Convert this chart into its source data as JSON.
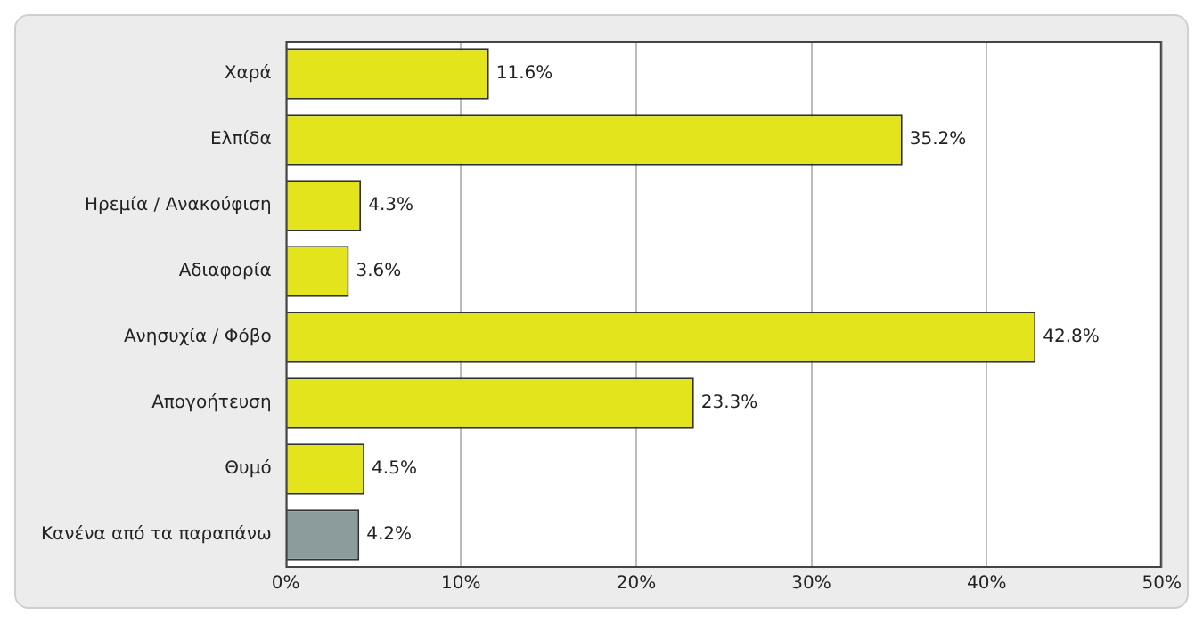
{
  "chart_data": {
    "type": "bar",
    "orientation": "horizontal",
    "categories": [
      "Χαρά",
      "Ελπίδα",
      "Ηρεμία / Ανακούφιση",
      "Αδιαφορία",
      "Ανησυχία / Φόβο",
      "Απογοήτευση",
      "Θυμό",
      "Κανένα από τα παραπάνω"
    ],
    "values": [
      11.6,
      35.2,
      4.3,
      3.6,
      42.8,
      23.3,
      4.5,
      4.2
    ],
    "colors": [
      "#e4e41c",
      "#e4e41c",
      "#e4e41c",
      "#e4e41c",
      "#e4e41c",
      "#e4e41c",
      "#e4e41c",
      "#8c9c9c"
    ],
    "value_labels": [
      "11.6%",
      "35.2%",
      "4.3%",
      "3.6%",
      "42.8%",
      "23.3%",
      "4.5%",
      "4.2%"
    ],
    "xlim": [
      0,
      50
    ],
    "xticks": [
      {
        "value": 0,
        "label": "0%"
      },
      {
        "value": 10,
        "label": "10%"
      },
      {
        "value": 20,
        "label": "20%"
      },
      {
        "value": 30,
        "label": "30%"
      },
      {
        "value": 40,
        "label": "40%"
      },
      {
        "value": 50,
        "label": "50%"
      }
    ],
    "grid": "x",
    "legend": false
  }
}
